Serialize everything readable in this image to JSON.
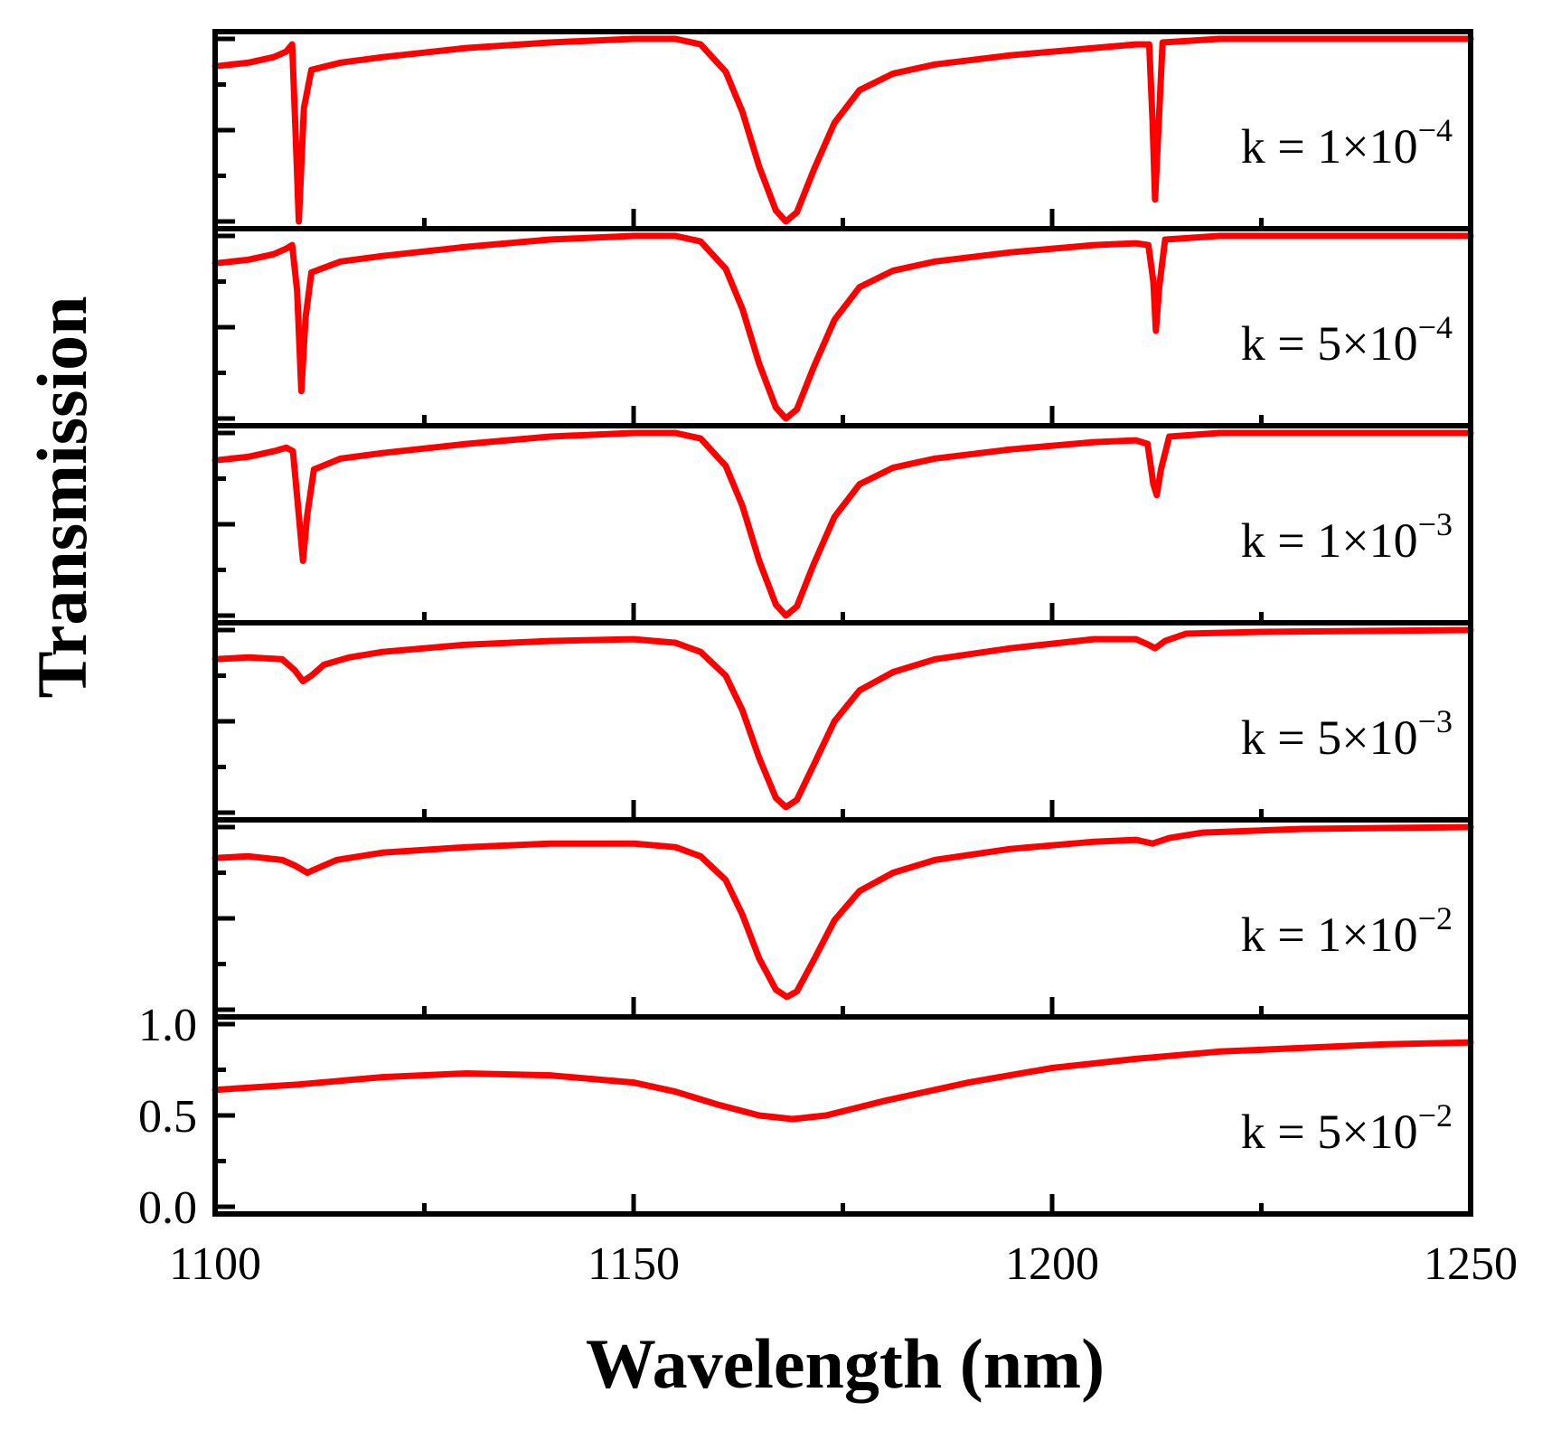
{
  "chart_data": {
    "type": "line",
    "xlabel": "Wavelength (nm)",
    "ylabel": "Transmission",
    "xlim": [
      1100,
      1250
    ],
    "ylim": [
      0.0,
      1.0
    ],
    "x_ticks": [
      1100,
      1150,
      1200,
      1250
    ],
    "x_tick_labels": [
      "1100",
      "1150",
      "1200",
      "1250"
    ],
    "y_ticks": [
      0.0,
      0.5,
      1.0
    ],
    "y_tick_labels": [
      "0.0",
      "0.5",
      "1.0"
    ],
    "line_color": "#ff0000",
    "axis_color": "#000000",
    "series": [
      {
        "name": "k = 1×10−4",
        "label_prefix": "k = 1×10",
        "label_exponent": "−4",
        "points": [
          [
            1100,
            0.85
          ],
          [
            1104,
            0.87
          ],
          [
            1107,
            0.9
          ],
          [
            1108.5,
            0.93
          ],
          [
            1109.2,
            0.97
          ],
          [
            1109.6,
            0.5
          ],
          [
            1110.0,
            0.0
          ],
          [
            1110.6,
            0.62
          ],
          [
            1111.5,
            0.83
          ],
          [
            1115,
            0.87
          ],
          [
            1120,
            0.9
          ],
          [
            1130,
            0.95
          ],
          [
            1140,
            0.98
          ],
          [
            1150,
            1.0
          ],
          [
            1155,
            1.0
          ],
          [
            1158,
            0.97
          ],
          [
            1161,
            0.82
          ],
          [
            1163,
            0.6
          ],
          [
            1165,
            0.3
          ],
          [
            1167,
            0.06
          ],
          [
            1168.2,
            0.0
          ],
          [
            1169.5,
            0.05
          ],
          [
            1171.5,
            0.28
          ],
          [
            1174,
            0.54
          ],
          [
            1177,
            0.72
          ],
          [
            1181,
            0.81
          ],
          [
            1186,
            0.86
          ],
          [
            1195,
            0.91
          ],
          [
            1205,
            0.95
          ],
          [
            1210,
            0.97
          ],
          [
            1211.6,
            0.97
          ],
          [
            1212.0,
            0.55
          ],
          [
            1212.3,
            0.12
          ],
          [
            1212.7,
            0.5
          ],
          [
            1213.2,
            0.98
          ],
          [
            1220,
            1.0
          ],
          [
            1235,
            1.0
          ],
          [
            1250,
            1.0
          ]
        ]
      },
      {
        "name": "k = 5×10−4",
        "label_prefix": "k = 5×10",
        "label_exponent": "−4",
        "points": [
          [
            1100,
            0.85
          ],
          [
            1104,
            0.87
          ],
          [
            1107,
            0.9
          ],
          [
            1108.5,
            0.93
          ],
          [
            1109.2,
            0.95
          ],
          [
            1109.8,
            0.7
          ],
          [
            1110.3,
            0.15
          ],
          [
            1110.8,
            0.55
          ],
          [
            1111.5,
            0.8
          ],
          [
            1115,
            0.86
          ],
          [
            1120,
            0.89
          ],
          [
            1130,
            0.94
          ],
          [
            1140,
            0.98
          ],
          [
            1150,
            1.0
          ],
          [
            1155,
            1.0
          ],
          [
            1158,
            0.97
          ],
          [
            1161,
            0.82
          ],
          [
            1163,
            0.6
          ],
          [
            1165,
            0.3
          ],
          [
            1167,
            0.06
          ],
          [
            1168.2,
            0.0
          ],
          [
            1169.5,
            0.05
          ],
          [
            1171.5,
            0.28
          ],
          [
            1174,
            0.54
          ],
          [
            1177,
            0.72
          ],
          [
            1181,
            0.81
          ],
          [
            1186,
            0.86
          ],
          [
            1195,
            0.91
          ],
          [
            1205,
            0.95
          ],
          [
            1210,
            0.96
          ],
          [
            1211.5,
            0.95
          ],
          [
            1212.1,
            0.75
          ],
          [
            1212.4,
            0.48
          ],
          [
            1212.8,
            0.72
          ],
          [
            1213.5,
            0.98
          ],
          [
            1220,
            1.0
          ],
          [
            1235,
            1.0
          ],
          [
            1250,
            1.0
          ]
        ]
      },
      {
        "name": "k = 1×10−3",
        "label_prefix": "k = 1×10",
        "label_exponent": "−3",
        "points": [
          [
            1100,
            0.85
          ],
          [
            1104,
            0.87
          ],
          [
            1107,
            0.9
          ],
          [
            1108.5,
            0.92
          ],
          [
            1109.3,
            0.9
          ],
          [
            1110,
            0.55
          ],
          [
            1110.5,
            0.3
          ],
          [
            1111.0,
            0.55
          ],
          [
            1111.8,
            0.8
          ],
          [
            1115,
            0.86
          ],
          [
            1120,
            0.89
          ],
          [
            1130,
            0.94
          ],
          [
            1140,
            0.98
          ],
          [
            1150,
            1.0
          ],
          [
            1155,
            1.0
          ],
          [
            1158,
            0.97
          ],
          [
            1161,
            0.82
          ],
          [
            1163,
            0.6
          ],
          [
            1165,
            0.3
          ],
          [
            1167,
            0.06
          ],
          [
            1168.2,
            0.0
          ],
          [
            1169.5,
            0.05
          ],
          [
            1171.5,
            0.28
          ],
          [
            1174,
            0.54
          ],
          [
            1177,
            0.72
          ],
          [
            1181,
            0.81
          ],
          [
            1186,
            0.86
          ],
          [
            1195,
            0.91
          ],
          [
            1205,
            0.95
          ],
          [
            1210,
            0.96
          ],
          [
            1211.4,
            0.94
          ],
          [
            1212.1,
            0.72
          ],
          [
            1212.5,
            0.66
          ],
          [
            1213.0,
            0.8
          ],
          [
            1214,
            0.98
          ],
          [
            1220,
            1.0
          ],
          [
            1235,
            1.0
          ],
          [
            1250,
            1.0
          ]
        ]
      },
      {
        "name": "k = 5×10−3",
        "label_prefix": "k = 5×10",
        "label_exponent": "−3",
        "points": [
          [
            1100,
            0.84
          ],
          [
            1104,
            0.85
          ],
          [
            1108,
            0.84
          ],
          [
            1109.5,
            0.78
          ],
          [
            1110.5,
            0.72
          ],
          [
            1111.5,
            0.75
          ],
          [
            1113,
            0.81
          ],
          [
            1116,
            0.85
          ],
          [
            1120,
            0.88
          ],
          [
            1130,
            0.92
          ],
          [
            1140,
            0.94
          ],
          [
            1150,
            0.95
          ],
          [
            1155,
            0.93
          ],
          [
            1158,
            0.88
          ],
          [
            1161,
            0.75
          ],
          [
            1163,
            0.56
          ],
          [
            1165,
            0.3
          ],
          [
            1167,
            0.08
          ],
          [
            1168.2,
            0.03
          ],
          [
            1169.5,
            0.07
          ],
          [
            1171.5,
            0.26
          ],
          [
            1174,
            0.5
          ],
          [
            1177,
            0.67
          ],
          [
            1181,
            0.77
          ],
          [
            1186,
            0.84
          ],
          [
            1195,
            0.9
          ],
          [
            1205,
            0.95
          ],
          [
            1210,
            0.95
          ],
          [
            1211.5,
            0.92
          ],
          [
            1212.3,
            0.9
          ],
          [
            1213.5,
            0.94
          ],
          [
            1216,
            0.98
          ],
          [
            1225,
            0.99
          ],
          [
            1250,
            1.0
          ]
        ]
      },
      {
        "name": "k = 1×10−2",
        "label_prefix": "k = 1×10",
        "label_exponent": "−2",
        "points": [
          [
            1100,
            0.83
          ],
          [
            1104,
            0.84
          ],
          [
            1108,
            0.82
          ],
          [
            1109.5,
            0.79
          ],
          [
            1111,
            0.75
          ],
          [
            1112.5,
            0.78
          ],
          [
            1114.5,
            0.82
          ],
          [
            1120,
            0.86
          ],
          [
            1130,
            0.89
          ],
          [
            1140,
            0.91
          ],
          [
            1150,
            0.91
          ],
          [
            1155,
            0.89
          ],
          [
            1158,
            0.84
          ],
          [
            1161,
            0.71
          ],
          [
            1163,
            0.52
          ],
          [
            1165,
            0.28
          ],
          [
            1167,
            0.11
          ],
          [
            1168.3,
            0.07
          ],
          [
            1169.5,
            0.1
          ],
          [
            1171.5,
            0.27
          ],
          [
            1174,
            0.49
          ],
          [
            1177,
            0.65
          ],
          [
            1181,
            0.75
          ],
          [
            1186,
            0.82
          ],
          [
            1195,
            0.88
          ],
          [
            1205,
            0.92
          ],
          [
            1210,
            0.93
          ],
          [
            1212,
            0.91
          ],
          [
            1214,
            0.94
          ],
          [
            1218,
            0.97
          ],
          [
            1230,
            0.99
          ],
          [
            1250,
            1.0
          ]
        ]
      },
      {
        "name": "k = 5×10−2",
        "label_prefix": "k = 5×10",
        "label_exponent": "−2",
        "points": [
          [
            1100,
            0.64
          ],
          [
            1110,
            0.67
          ],
          [
            1120,
            0.71
          ],
          [
            1130,
            0.73
          ],
          [
            1140,
            0.72
          ],
          [
            1150,
            0.68
          ],
          [
            1155,
            0.63
          ],
          [
            1160,
            0.56
          ],
          [
            1165,
            0.5
          ],
          [
            1169,
            0.48
          ],
          [
            1173,
            0.5
          ],
          [
            1180,
            0.58
          ],
          [
            1190,
            0.68
          ],
          [
            1200,
            0.76
          ],
          [
            1210,
            0.81
          ],
          [
            1220,
            0.85
          ],
          [
            1230,
            0.87
          ],
          [
            1240,
            0.89
          ],
          [
            1250,
            0.9
          ]
        ]
      }
    ]
  }
}
